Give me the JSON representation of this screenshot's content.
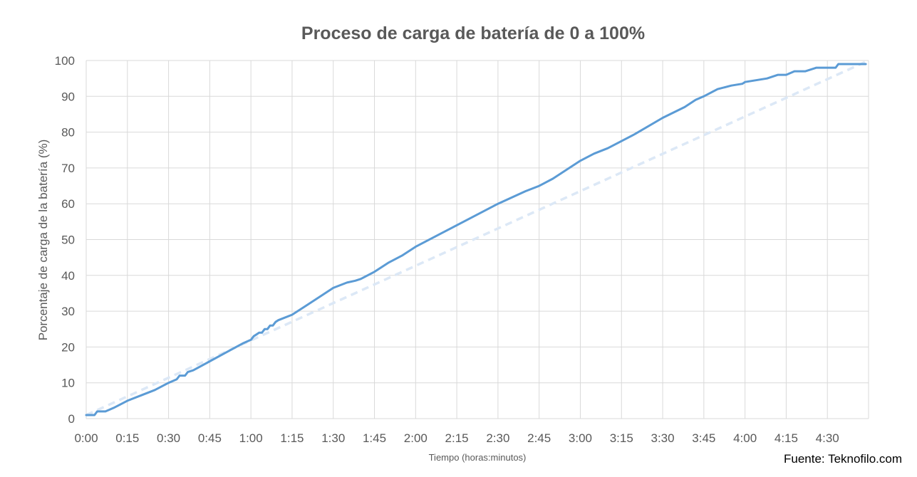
{
  "chart_data": {
    "type": "line",
    "title": "Proceso de carga de batería de 0 a 100%",
    "xlabel": "Tiempo (horas:minutos)",
    "ylabel": "Porcentaje de carga de la batería (%)",
    "source": "Fuente: Teknofilo.com",
    "x_tick_labels": [
      "0:00",
      "0:15",
      "0:30",
      "0:45",
      "1:00",
      "1:15",
      "1:30",
      "1:45",
      "2:00",
      "2:15",
      "2:30",
      "2:45",
      "3:00",
      "3:15",
      "3:30",
      "3:45",
      "4:00",
      "4:15",
      "4:30"
    ],
    "y_tick_labels": [
      "0",
      "10",
      "20",
      "30",
      "40",
      "50",
      "60",
      "70",
      "80",
      "90",
      "100"
    ],
    "xlim": [
      "0:00",
      "4:45"
    ],
    "ylim": [
      0,
      100
    ],
    "grid": true,
    "colors": {
      "series": "#5b9bd5",
      "reference": "#dce8f6",
      "grid": "#d9d9d9",
      "text": "#595959"
    },
    "series": [
      {
        "style": "solid",
        "x": [
          "0:00",
          "0:03",
          "0:04",
          "0:07",
          "0:10",
          "0:15",
          "0:20",
          "0:25",
          "0:30",
          "0:33",
          "0:34",
          "0:36",
          "0:37",
          "0:39",
          "0:45",
          "0:51",
          "0:57",
          "1:00",
          "1:01",
          "1:02",
          "1:03",
          "1:04",
          "1:05",
          "1:06",
          "1:07",
          "1:08",
          "1:09",
          "1:10",
          "1:15",
          "1:20",
          "1:25",
          "1:30",
          "1:35",
          "1:38",
          "1:40",
          "1:45",
          "1:50",
          "1:55",
          "2:00",
          "2:10",
          "2:20",
          "2:30",
          "2:40",
          "2:45",
          "2:50",
          "2:55",
          "3:00",
          "3:05",
          "3:10",
          "3:20",
          "3:30",
          "3:38",
          "3:42",
          "3:45",
          "3:50",
          "3:55",
          "3:59",
          "4:00",
          "4:04",
          "4:08",
          "4:12",
          "4:14",
          "4:15",
          "4:18",
          "4:22",
          "4:26",
          "4:30",
          "4:33",
          "4:34",
          "4:38",
          "4:41",
          "4:44"
        ],
        "values": [
          1,
          1,
          2,
          2,
          3,
          5,
          6.5,
          8,
          10,
          11,
          12,
          12,
          13,
          13.5,
          16,
          18.5,
          21,
          22,
          23,
          23.5,
          24,
          24,
          25,
          25,
          26,
          26,
          27,
          27.5,
          29,
          31.5,
          34,
          36.5,
          38,
          38.5,
          39,
          41,
          43.5,
          45.5,
          48,
          52,
          56,
          60,
          63.5,
          65,
          67,
          69.5,
          72,
          74,
          75.5,
          79.5,
          84,
          87,
          89,
          90,
          92,
          93,
          93.5,
          94,
          94.5,
          95,
          96,
          96,
          96,
          97,
          97,
          98,
          98,
          98,
          99,
          99,
          99,
          99
        ]
      },
      {
        "style": "dashed",
        "x": [
          "0:00",
          "4:45"
        ],
        "values": [
          1,
          100
        ]
      }
    ]
  }
}
